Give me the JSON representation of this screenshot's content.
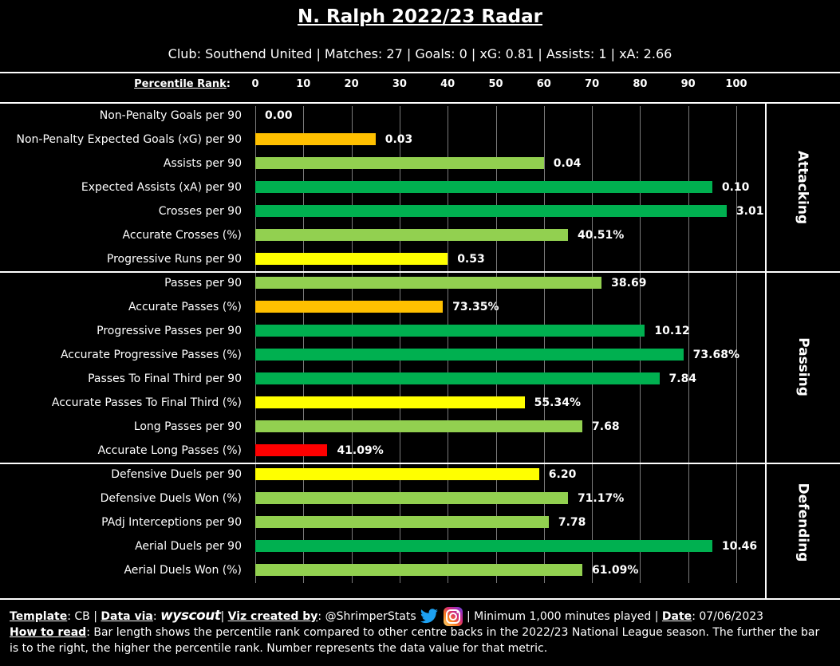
{
  "header": {
    "title": "N. Ralph 2022/23 Radar",
    "subtitle": "Club: Southend United | Matches: 27 | Goals: 0 | xG: 0.81 | Assists: 1 | xA: 2.66"
  },
  "colors": {
    "dark_green": "#00b050",
    "light_green": "#92d050",
    "yellow": "#ffff00",
    "orange": "#ffc000",
    "red": "#ff0000"
  },
  "chart_data": {
    "type": "bar",
    "orientation": "horizontal",
    "xlabel": "Percentile Rank",
    "xlim": [
      0,
      100
    ],
    "ticks": [
      0,
      10,
      20,
      30,
      40,
      50,
      60,
      70,
      80,
      90,
      100
    ],
    "sections": [
      {
        "name": "Attacking",
        "metrics": [
          {
            "label": "Non-Penalty Goals per 90",
            "percentile": 0,
            "value": "0.00",
            "color": "#00b050"
          },
          {
            "label": "Non-Penalty Expected Goals (xG) per 90",
            "percentile": 25,
            "value": "0.03",
            "color": "#ffc000"
          },
          {
            "label": "Assists per 90",
            "percentile": 60,
            "value": "0.04",
            "color": "#92d050"
          },
          {
            "label": "Expected Assists (xA) per 90",
            "percentile": 95,
            "value": "0.10",
            "color": "#00b050"
          },
          {
            "label": "Crosses per 90",
            "percentile": 98,
            "value": "3.01",
            "color": "#00b050"
          },
          {
            "label": "Accurate Crosses (%)",
            "percentile": 65,
            "value": "40.51%",
            "color": "#92d050"
          },
          {
            "label": "Progressive Runs per 90",
            "percentile": 40,
            "value": "0.53",
            "color": "#ffff00"
          }
        ]
      },
      {
        "name": "Passing",
        "metrics": [
          {
            "label": "Passes per 90",
            "percentile": 72,
            "value": "38.69",
            "color": "#92d050"
          },
          {
            "label": "Accurate Passes (%)",
            "percentile": 39,
            "value": "73.35%",
            "color": "#ffc000"
          },
          {
            "label": "Progressive Passes per 90",
            "percentile": 81,
            "value": "10.12",
            "color": "#00b050"
          },
          {
            "label": "Accurate Progressive Passes (%)",
            "percentile": 89,
            "value": "73.68%",
            "color": "#00b050"
          },
          {
            "label": "Passes To Final Third per 90",
            "percentile": 84,
            "value": "7.84",
            "color": "#00b050"
          },
          {
            "label": "Accurate Passes To Final Third (%)",
            "percentile": 56,
            "value": "55.34%",
            "color": "#ffff00"
          },
          {
            "label": "Long Passes per 90",
            "percentile": 68,
            "value": "7.68",
            "color": "#92d050"
          },
          {
            "label": "Accurate Long Passes (%)",
            "percentile": 15,
            "value": "41.09%",
            "color": "#ff0000"
          }
        ]
      },
      {
        "name": "Defending",
        "metrics": [
          {
            "label": "Defensive Duels per 90",
            "percentile": 59,
            "value": "6.20",
            "color": "#ffff00"
          },
          {
            "label": "Defensive Duels Won (%)",
            "percentile": 65,
            "value": "71.17%",
            "color": "#92d050"
          },
          {
            "label": "PAdj Interceptions per 90",
            "percentile": 61,
            "value": "7.78",
            "color": "#92d050"
          },
          {
            "label": "Aerial Duels per 90",
            "percentile": 95,
            "value": "10.46",
            "color": "#00b050"
          },
          {
            "label": "Aerial Duels Won (%)",
            "percentile": 68,
            "value": "61.09%",
            "color": "#92d050"
          }
        ]
      }
    ]
  },
  "footer": {
    "template_label": "Template",
    "template_value": "CB",
    "data_via_label": "Data via",
    "data_source": "wyscout",
    "viz_label": "Viz created by",
    "creator": "@ShrimperStats",
    "minimum": "| Minimum 1,000 minutes played |",
    "date_label": "Date",
    "date_value": "07/06/2023",
    "how_label": "How to read",
    "how_text": "Bar length shows the percentile rank compared to other centre backs in the 2022/23 National League season. The further the bar is to the right, the higher the percentile rank. Number represents the data value for that metric."
  }
}
